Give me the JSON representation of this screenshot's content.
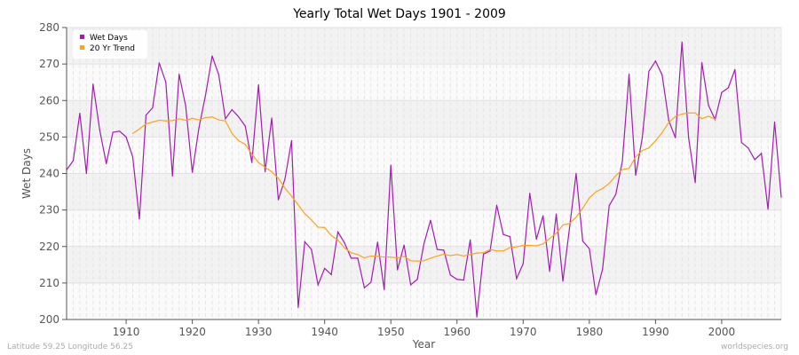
{
  "chart_data": {
    "type": "line",
    "title": "Yearly Total Wet Days 1901 - 2009",
    "xlabel": "Year",
    "ylabel": "Wet Days",
    "xlim": [
      1901,
      2009
    ],
    "ylim": [
      200,
      280
    ],
    "x_ticks": [
      1910,
      1920,
      1930,
      1940,
      1950,
      1960,
      1970,
      1980,
      1990,
      2000
    ],
    "y_ticks": [
      200,
      210,
      220,
      230,
      240,
      250,
      260,
      270,
      280
    ],
    "grid": true,
    "legend_position": "top-left",
    "series": [
      {
        "name": "Wet Days",
        "color": "#a21caf",
        "x_start": 1901,
        "values": [
          241,
          243.5,
          256.5,
          240,
          264.5,
          252,
          242.7,
          251.3,
          251.6,
          250,
          244.5,
          227.5,
          256,
          258,
          270.3,
          265,
          239.3,
          267.2,
          258.5,
          240.3,
          252.5,
          261.5,
          272.2,
          267,
          255,
          257.5,
          255.5,
          253,
          243,
          264.3,
          240.5,
          255.2,
          232.8,
          238.5,
          249,
          203.3,
          221.3,
          219.2,
          209.5,
          214,
          212.3,
          224,
          221,
          216.8,
          216.8,
          208.7,
          210.2,
          221.2,
          208.2,
          242.3,
          213.6,
          220.4,
          209.5,
          211,
          220.7,
          227.2,
          219.2,
          219,
          212.2,
          211,
          210.8,
          221.8,
          200.7,
          217.9,
          218.8,
          231.3,
          223.3,
          222.7,
          211.2,
          215.3,
          234.6,
          222,
          228.4,
          213.2,
          228.9,
          210.5,
          225,
          240,
          221.5,
          219.4,
          206.8,
          213.8,
          231.2,
          234.3,
          243.5,
          267.2,
          239.5,
          249.8,
          268,
          270.8,
          267,
          254.5,
          249.8,
          276,
          249.8,
          237.5,
          270.4,
          258.7,
          254.8,
          262.2,
          263.5,
          268.5,
          248.5,
          247,
          243.8,
          245.5,
          230.2,
          254.1,
          233.5
        ]
      },
      {
        "name": "20 Yr Trend",
        "color": "#ffa31a",
        "x_start": 1911,
        "values": [
          251,
          252.2,
          253.6,
          254.1,
          254.6,
          254.4,
          254.5,
          255,
          254.6,
          255.1,
          254.7,
          255.3,
          255.5,
          254.7,
          254.4,
          251,
          249,
          248,
          245.3,
          243,
          241.7,
          240.5,
          238.7,
          236,
          233.8,
          231.4,
          229,
          227.3,
          225.3,
          225.2,
          223,
          221.8,
          219.6,
          218.3,
          217.8,
          216.9,
          217.4,
          217.3,
          217.1,
          217.1,
          216.9,
          217.3,
          216.1,
          216,
          216.1,
          216.8,
          217.4,
          217.9,
          217.5,
          217.8,
          217.4,
          217.8,
          218.2,
          218.3,
          219.2,
          218.8,
          218.8,
          219.7,
          219.9,
          220.3,
          220.3,
          220.2,
          220.7,
          222.2,
          223.6,
          225.9,
          226.3,
          228,
          230.5,
          233.3,
          235,
          235.9,
          237.3,
          239.4,
          241.1,
          241.4,
          244.6,
          246.3,
          247,
          249,
          251.2,
          254,
          255.6,
          256.3,
          256.6,
          256.6,
          255,
          255.7,
          254.9
        ]
      }
    ]
  },
  "footer": {
    "location": "Latitude 59.25 Longitude 56.25",
    "source": "worldspecies.org"
  }
}
